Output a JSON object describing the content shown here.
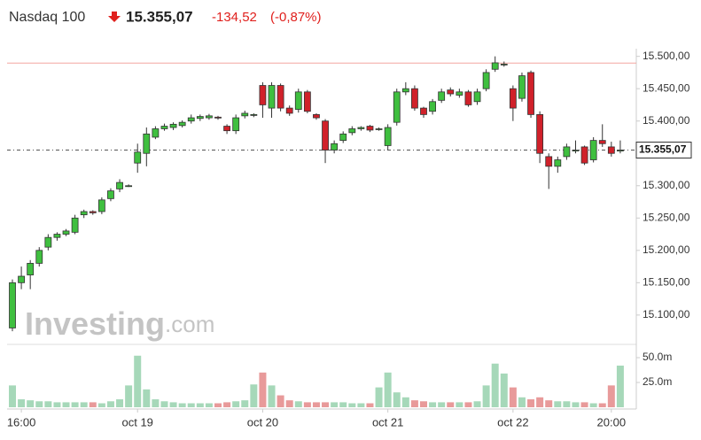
{
  "chart_data": {
    "type": "candlestick",
    "title": "Nasdaq 100",
    "last_price": {
      "value": 15355.07,
      "label": "15.355,07"
    },
    "change": "-134,52",
    "change_percent": "(-0,87%)",
    "previous_close": 15489.59,
    "watermark": [
      "Investing",
      ".com"
    ],
    "up_color": "#3fbf3f",
    "down_color": "#d0212a",
    "volume_up_color": "#a6d8b9",
    "volume_down_color": "#e89a9a",
    "categories": [
      null,
      "16:00",
      null,
      null,
      null,
      null,
      null,
      null,
      null,
      null,
      null,
      null,
      null,
      null,
      "oct 19",
      null,
      null,
      null,
      null,
      null,
      null,
      null,
      null,
      null,
      null,
      null,
      null,
      null,
      "oct 20",
      null,
      null,
      null,
      null,
      null,
      null,
      null,
      null,
      null,
      null,
      null,
      null,
      null,
      "oct 21",
      null,
      null,
      null,
      null,
      null,
      null,
      null,
      null,
      null,
      null,
      null,
      null,
      null,
      "oct 22",
      null,
      null,
      null,
      null,
      null,
      null,
      null,
      null,
      null,
      null,
      "20:00",
      null
    ],
    "open": [
      15080,
      15150,
      15162,
      15180,
      15205,
      15220,
      15225,
      15228,
      15255,
      15260,
      15260,
      15280,
      15295,
      15300,
      15335,
      15350,
      15375,
      15388,
      15390,
      15393,
      15400,
      15404,
      15405,
      15406,
      15392,
      15385,
      15408,
      15410,
      15455,
      15420,
      15455,
      15420,
      15418,
      15445,
      15410,
      15400,
      15355,
      15370,
      15382,
      15388,
      15392,
      15388,
      15362,
      15398,
      15445,
      15450,
      15420,
      15415,
      15432,
      15448,
      15440,
      15445,
      15430,
      15450,
      15480,
      15488,
      15450,
      15435,
      15475,
      15410,
      15345,
      15330,
      15345,
      15355,
      15360,
      15340,
      15370,
      15360,
      15355
    ],
    "high": [
      15155,
      15175,
      15185,
      15205,
      15225,
      15228,
      15233,
      15255,
      15263,
      15262,
      15282,
      15296,
      15310,
      15302,
      15365,
      15390,
      15392,
      15396,
      15398,
      15401,
      15410,
      15410,
      15411,
      15408,
      15395,
      15410,
      15416,
      15412,
      15460,
      15460,
      15458,
      15424,
      15450,
      15448,
      15412,
      15403,
      15370,
      15384,
      15392,
      15392,
      15394,
      15390,
      15395,
      15450,
      15460,
      15455,
      15422,
      15434,
      15450,
      15452,
      15450,
      15448,
      15450,
      15480,
      15500,
      15492,
      15455,
      15475,
      15478,
      15415,
      15350,
      15345,
      15365,
      15370,
      15362,
      15375,
      15395,
      15368,
      15370
    ],
    "low": [
      15075,
      15140,
      15140,
      15175,
      15200,
      15215,
      15222,
      15225,
      15250,
      15255,
      15256,
      15276,
      15290,
      15298,
      15320,
      15330,
      15372,
      15385,
      15386,
      15390,
      15396,
      15400,
      15402,
      15402,
      15380,
      15380,
      15404,
      15406,
      15405,
      15405,
      15415,
      15408,
      15413,
      15412,
      15402,
      15335,
      15350,
      15366,
      15378,
      15385,
      15383,
      15385,
      15355,
      15393,
      15440,
      15416,
      15405,
      15410,
      15428,
      15438,
      15436,
      15422,
      15425,
      15446,
      15476,
      15484,
      15400,
      15430,
      15405,
      15335,
      15295,
      15320,
      15340,
      15350,
      15332,
      15336,
      15360,
      15345,
      15350
    ],
    "close": [
      15150,
      15160,
      15180,
      15200,
      15220,
      15225,
      15230,
      15250,
      15260,
      15258,
      15278,
      15292,
      15305,
      15300,
      15352,
      15380,
      15388,
      15392,
      15395,
      15398,
      15405,
      15407,
      15408,
      15405,
      15385,
      15405,
      15412,
      15410,
      15425,
      15455,
      15420,
      15412,
      15445,
      15415,
      15405,
      15355,
      15365,
      15380,
      15388,
      15390,
      15386,
      15388,
      15390,
      15445,
      15450,
      15420,
      15410,
      15430,
      15445,
      15442,
      15445,
      15425,
      15445,
      15475,
      15490,
      15488,
      15420,
      15470,
      15410,
      15350,
      15330,
      15340,
      15360,
      15355,
      15335,
      15370,
      15365,
      15350,
      15355
    ],
    "ylim": [
      15056,
      15505
    ],
    "yticks": [
      {
        "value": 15100,
        "label": "15.100,00"
      },
      {
        "value": 15150,
        "label": "15.150,00"
      },
      {
        "value": 15200,
        "label": "15.200,00"
      },
      {
        "value": 15250,
        "label": "15.250,00"
      },
      {
        "value": 15300,
        "label": "15.300,00"
      },
      {
        "value": 15350,
        "label": "15.350,00"
      },
      {
        "value": 15400,
        "label": "15.400,00"
      },
      {
        "value": 15450,
        "label": "15.450,00"
      },
      {
        "value": 15500,
        "label": "15.500,00"
      }
    ],
    "volume": {
      "values": [
        22,
        8,
        7,
        6,
        6,
        5,
        5,
        5,
        5,
        5,
        4,
        6,
        8,
        22,
        52,
        18,
        8,
        6,
        5,
        4,
        4,
        4,
        4,
        4,
        5,
        6,
        7,
        23,
        35,
        22,
        12,
        7,
        6,
        5,
        5,
        5,
        5,
        5,
        4,
        4,
        4,
        20,
        35,
        15,
        10,
        7,
        6,
        5,
        5,
        5,
        5,
        5,
        6,
        22,
        44,
        34,
        20,
        10,
        8,
        10,
        7,
        6,
        6,
        5,
        5,
        4,
        4,
        22,
        42
      ],
      "ylim": [
        0,
        62.5
      ],
      "yticks": [
        {
          "value": 25,
          "label": "25.0m"
        },
        {
          "value": 50,
          "label": "50.0m"
        }
      ]
    }
  }
}
